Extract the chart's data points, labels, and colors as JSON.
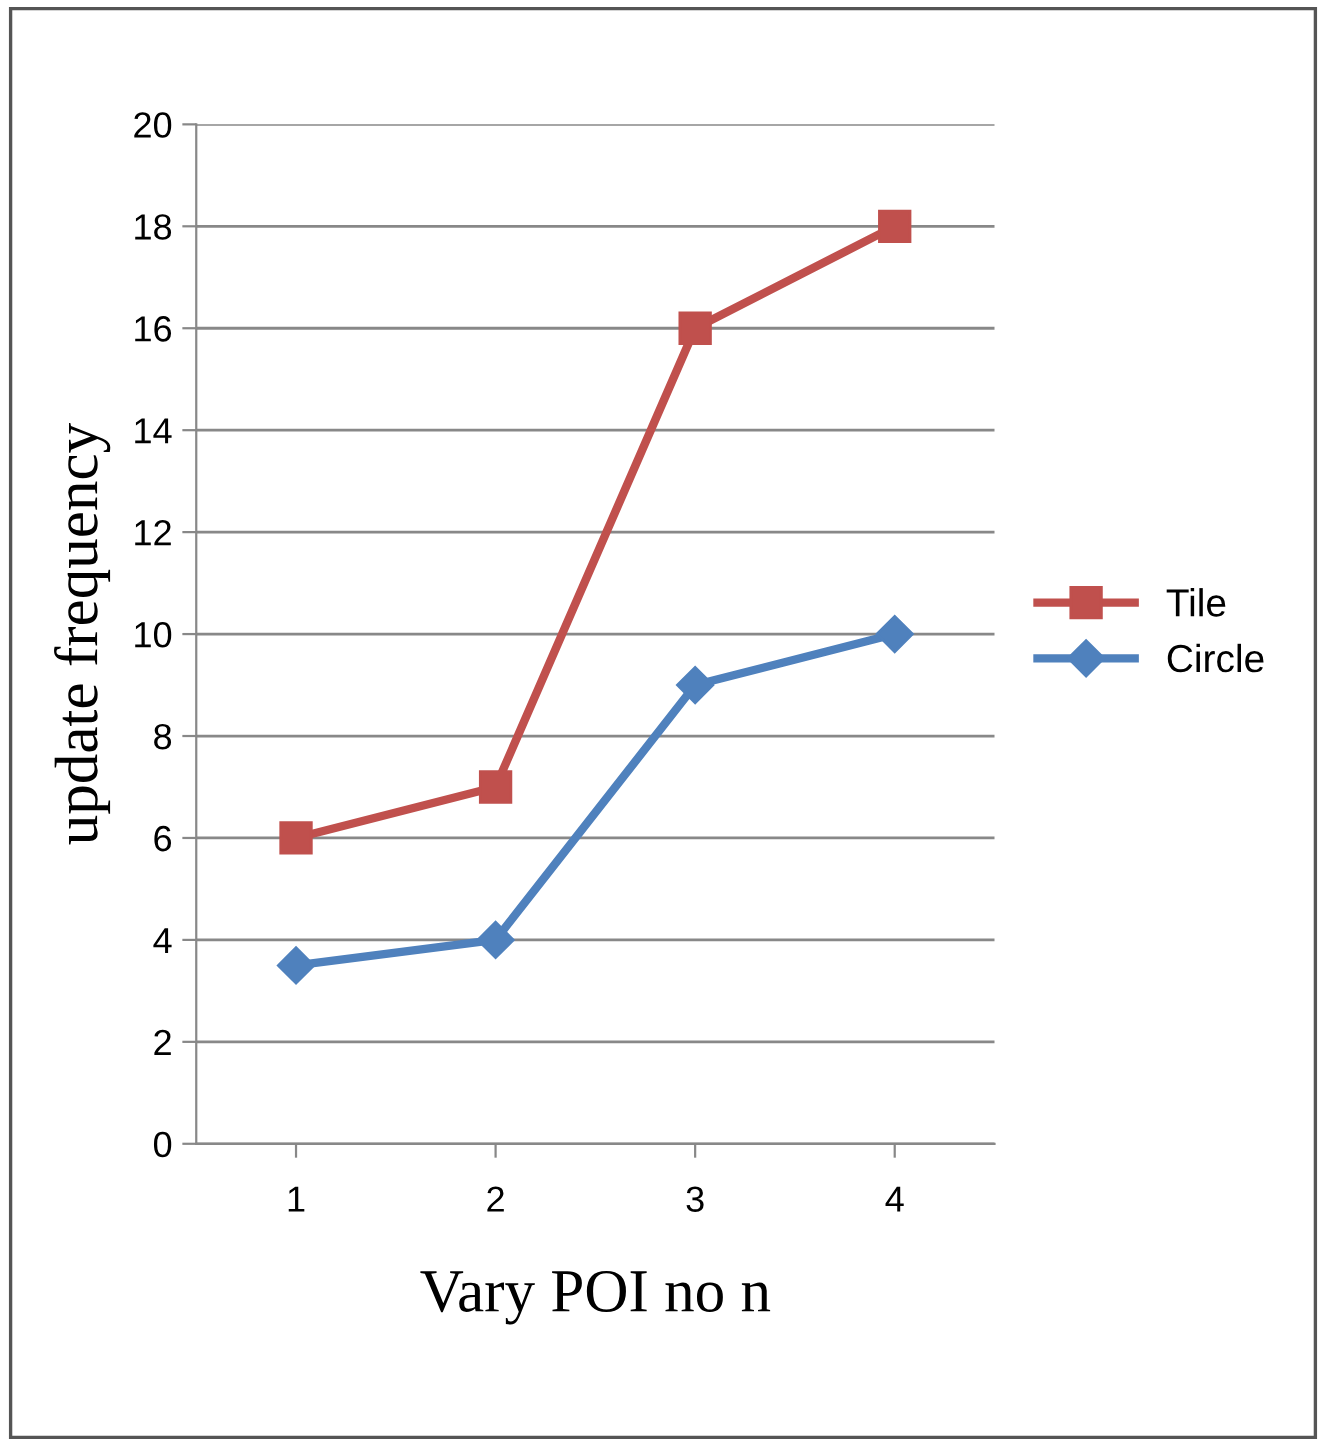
{
  "chart_data": {
    "type": "line",
    "xlabel": "Vary POI no n",
    "ylabel": "update frequency",
    "categories": [
      "1",
      "2",
      "3",
      "4"
    ],
    "series": [
      {
        "name": "Tile",
        "color": "#c0504d",
        "values": [
          6,
          7,
          16,
          18
        ],
        "marker": "square"
      },
      {
        "name": "Circle",
        "color": "#4f81bd",
        "values": [
          3.5,
          4,
          9,
          10
        ],
        "marker": "diamond"
      }
    ],
    "ylim": [
      0,
      20
    ],
    "yticks": [
      0,
      2,
      4,
      6,
      8,
      10,
      12,
      14,
      16,
      18,
      20
    ],
    "grid": "y",
    "legend": "right",
    "line_style": "solid"
  }
}
